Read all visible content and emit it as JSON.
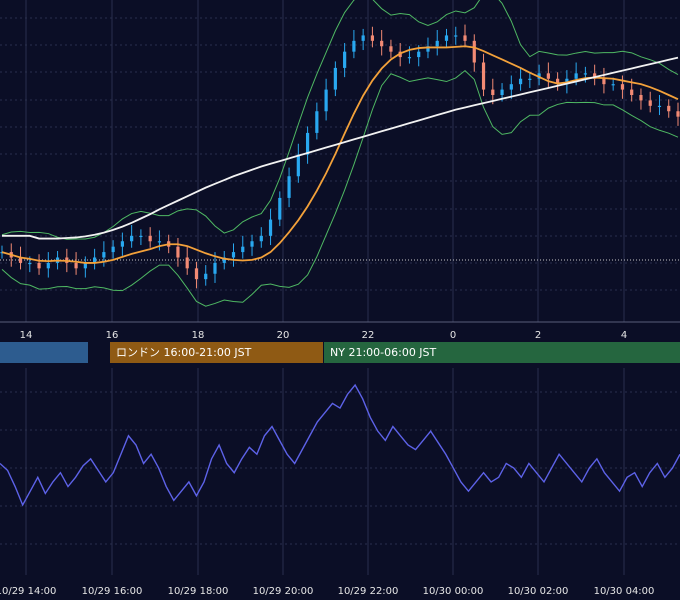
{
  "colors": {
    "background": "#0b0e26",
    "grid": "#2a2f4d",
    "candle_up": "#29a8f0",
    "candle_down": "#f28a74",
    "bollinger": "#4fb863",
    "ma_fast": "#f3a13a",
    "ma_slow": "#f2f2f2",
    "indicator": "#5d62e8",
    "session_tokyo": "#2d5c8f",
    "session_london": "#8f5a14",
    "session_ny": "#25663f"
  },
  "sessions": [
    {
      "label": ""
    },
    {
      "label": "ロンドン 16:00-21:00 JST"
    },
    {
      "label": "NY 21:00-06:00 JST"
    }
  ],
  "chart_data": [
    {
      "type": "candlestick",
      "x_tick_labels": [
        "14",
        "16",
        "18",
        "20",
        "22",
        "0",
        "2",
        "4"
      ],
      "overlays": [
        "bollinger_bands",
        "moving_average_fast",
        "moving_average_slow"
      ],
      "grid": true,
      "y_range": [
        0,
        100
      ],
      "candles_close": [
        52,
        51,
        50,
        50,
        49,
        50,
        51,
        50,
        49,
        50,
        51,
        52,
        53,
        54,
        55,
        55,
        54,
        54,
        53,
        51,
        49,
        47,
        48,
        50,
        51,
        52,
        53,
        54,
        55,
        58,
        62,
        66,
        70,
        74,
        78,
        82,
        86,
        89,
        91,
        92,
        91,
        90,
        89,
        88,
        88,
        89,
        90,
        91,
        92,
        92,
        91,
        87,
        82,
        81,
        82,
        83,
        84,
        84,
        85,
        84,
        83,
        84,
        85,
        85,
        84,
        83,
        83,
        82,
        81,
        80,
        79,
        79,
        78,
        77
      ],
      "ma_slow": [
        55,
        55,
        55,
        55,
        54.5,
        54.5,
        54.5,
        54.6,
        54.7,
        54.9,
        55.2,
        55.6,
        56.1,
        56.7,
        57.4,
        58.2,
        59.0,
        59.9,
        60.7,
        61.5,
        62.3,
        63.1,
        63.9,
        64.6,
        65.3,
        66.0,
        66.6,
        67.2,
        67.8,
        68.3,
        68.8,
        69.3,
        69.8,
        70.3,
        70.8,
        71.3,
        71.8,
        72.3,
        72.8,
        73.3,
        73.8,
        74.3,
        74.8,
        75.3,
        75.8,
        76.3,
        76.8,
        77.3,
        77.8,
        78.3,
        78.7,
        79.1,
        79.5,
        79.9,
        80.3,
        80.7,
        81.1,
        81.5,
        81.9,
        82.3,
        82.7,
        83.1,
        83.5,
        83.9,
        84.3,
        84.7,
        85.1,
        85.5,
        85.9,
        86.3,
        86.7,
        87.1,
        87.5,
        87.9
      ],
      "reference_line": 49
    },
    {
      "type": "line",
      "x_tick_labels": [
        "10/29 14:00",
        "10/29 16:00",
        "10/29 18:00",
        "10/29 20:00",
        "10/29 22:00",
        "10/30 00:00",
        "10/30 02:00",
        "10/30 04:00"
      ],
      "y_range": [
        0,
        100
      ],
      "grid": true,
      "values": [
        48,
        45,
        38,
        30,
        36,
        42,
        35,
        40,
        44,
        38,
        42,
        47,
        50,
        45,
        40,
        44,
        52,
        60,
        56,
        48,
        52,
        46,
        38,
        32,
        36,
        40,
        34,
        40,
        50,
        56,
        48,
        44,
        50,
        55,
        52,
        60,
        64,
        58,
        52,
        48,
        54,
        60,
        66,
        70,
        74,
        72,
        78,
        82,
        76,
        68,
        62,
        58,
        64,
        60,
        56,
        54,
        58,
        62,
        57,
        52,
        46,
        40,
        36,
        40,
        44,
        40,
        42,
        48,
        46,
        42,
        48,
        44,
        40,
        46,
        52,
        48,
        44,
        40,
        46,
        50,
        44,
        40,
        36,
        42,
        44,
        38,
        44,
        48,
        42,
        46,
        52
      ]
    }
  ]
}
